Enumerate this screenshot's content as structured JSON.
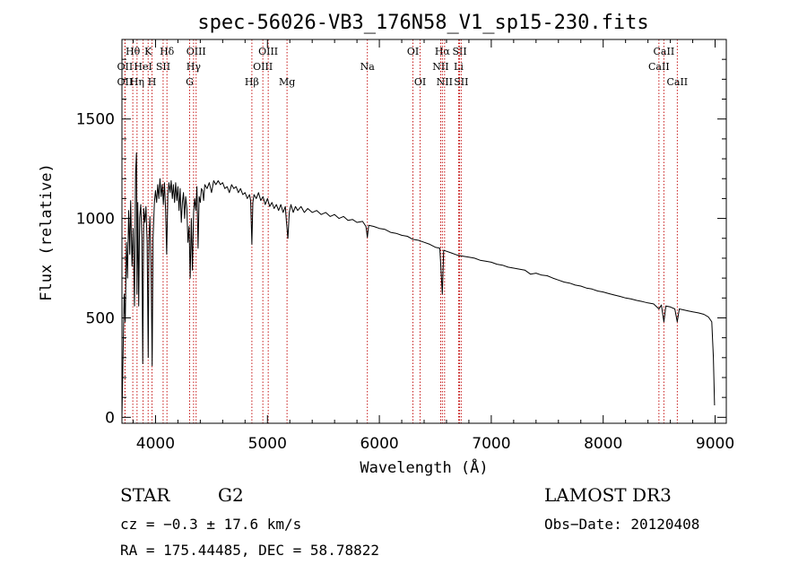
{
  "chart_data": {
    "type": "line",
    "title": "spec-56026-VB3_176N58_V1_sp15-230.fits",
    "xlabel": "Wavelength (Å)",
    "ylabel": "Flux (relative)",
    "xlim": [
      3700,
      9100
    ],
    "ylim": [
      -30,
      1900
    ],
    "xticks": [
      4000,
      5000,
      6000,
      7000,
      8000,
      9000
    ],
    "yticks": [
      0,
      500,
      1000,
      1500
    ],
    "series": [
      {
        "name": "spectrum",
        "points": [
          [
            3700,
            0
          ],
          [
            3705,
            150
          ],
          [
            3712,
            380
          ],
          [
            3720,
            620
          ],
          [
            3730,
            480
          ],
          [
            3740,
            880
          ],
          [
            3750,
            700
          ],
          [
            3760,
            1040
          ],
          [
            3770,
            820
          ],
          [
            3778,
            1090
          ],
          [
            3790,
            760
          ],
          [
            3800,
            950
          ],
          [
            3812,
            560
          ],
          [
            3822,
            1230
          ],
          [
            3830,
            1330
          ],
          [
            3835,
            620
          ],
          [
            3842,
            1080
          ],
          [
            3850,
            560
          ],
          [
            3858,
            1000
          ],
          [
            3868,
            1070
          ],
          [
            3878,
            900
          ],
          [
            3886,
            270
          ],
          [
            3895,
            1050
          ],
          [
            3905,
            980
          ],
          [
            3915,
            1060
          ],
          [
            3925,
            880
          ],
          [
            3935,
            300
          ],
          [
            3942,
            900
          ],
          [
            3950,
            1010
          ],
          [
            3960,
            760
          ],
          [
            3970,
            260
          ],
          [
            3978,
            900
          ],
          [
            3990,
            1080
          ],
          [
            4000,
            1140
          ],
          [
            4010,
            1080
          ],
          [
            4020,
            1170
          ],
          [
            4030,
            1100
          ],
          [
            4040,
            1200
          ],
          [
            4050,
            1110
          ],
          [
            4060,
            1170
          ],
          [
            4070,
            1070
          ],
          [
            4080,
            1180
          ],
          [
            4090,
            1040
          ],
          [
            4100,
            820
          ],
          [
            4110,
            1120
          ],
          [
            4120,
            1180
          ],
          [
            4130,
            1130
          ],
          [
            4140,
            1190
          ],
          [
            4150,
            1100
          ],
          [
            4160,
            1170
          ],
          [
            4170,
            1080
          ],
          [
            4180,
            1180
          ],
          [
            4190,
            1090
          ],
          [
            4200,
            1160
          ],
          [
            4210,
            1040
          ],
          [
            4220,
            1150
          ],
          [
            4230,
            980
          ],
          [
            4240,
            1080
          ],
          [
            4250,
            1130
          ],
          [
            4260,
            1000
          ],
          [
            4270,
            1110
          ],
          [
            4280,
            1050
          ],
          [
            4290,
            880
          ],
          [
            4300,
            960
          ],
          [
            4310,
            700
          ],
          [
            4320,
            1000
          ],
          [
            4330,
            740
          ],
          [
            4340,
            1030
          ],
          [
            4350,
            1100
          ],
          [
            4360,
            1040
          ],
          [
            4370,
            1160
          ],
          [
            4380,
            850
          ],
          [
            4390,
            1110
          ],
          [
            4400,
            1080
          ],
          [
            4410,
            1150
          ],
          [
            4420,
            1140
          ],
          [
            4430,
            1090
          ],
          [
            4440,
            1170
          ],
          [
            4460,
            1150
          ],
          [
            4480,
            1180
          ],
          [
            4500,
            1130
          ],
          [
            4520,
            1190
          ],
          [
            4540,
            1170
          ],
          [
            4560,
            1190
          ],
          [
            4580,
            1170
          ],
          [
            4600,
            1180
          ],
          [
            4620,
            1150
          ],
          [
            4640,
            1160
          ],
          [
            4660,
            1130
          ],
          [
            4680,
            1170
          ],
          [
            4700,
            1150
          ],
          [
            4720,
            1160
          ],
          [
            4740,
            1130
          ],
          [
            4760,
            1150
          ],
          [
            4780,
            1120
          ],
          [
            4800,
            1130
          ],
          [
            4820,
            1100
          ],
          [
            4840,
            1120
          ],
          [
            4850,
            1090
          ],
          [
            4861,
            870
          ],
          [
            4870,
            1080
          ],
          [
            4880,
            1120
          ],
          [
            4900,
            1100
          ],
          [
            4920,
            1130
          ],
          [
            4940,
            1090
          ],
          [
            4960,
            1110
          ],
          [
            4980,
            1070
          ],
          [
            5000,
            1100
          ],
          [
            5020,
            1060
          ],
          [
            5040,
            1080
          ],
          [
            5060,
            1050
          ],
          [
            5080,
            1070
          ],
          [
            5100,
            1040
          ],
          [
            5120,
            1070
          ],
          [
            5140,
            1030
          ],
          [
            5160,
            1060
          ],
          [
            5170,
            980
          ],
          [
            5183,
            900
          ],
          [
            5195,
            1030
          ],
          [
            5210,
            1070
          ],
          [
            5230,
            1030
          ],
          [
            5250,
            1060
          ],
          [
            5270,
            1040
          ],
          [
            5300,
            1060
          ],
          [
            5330,
            1030
          ],
          [
            5360,
            1050
          ],
          [
            5400,
            1030
          ],
          [
            5440,
            1040
          ],
          [
            5480,
            1020
          ],
          [
            5520,
            1030
          ],
          [
            5560,
            1010
          ],
          [
            5600,
            1020
          ],
          [
            5640,
            1000
          ],
          [
            5680,
            1010
          ],
          [
            5720,
            990
          ],
          [
            5760,
            995
          ],
          [
            5800,
            980
          ],
          [
            5850,
            985
          ],
          [
            5880,
            960
          ],
          [
            5893,
            905
          ],
          [
            5905,
            965
          ],
          [
            5950,
            960
          ],
          [
            6000,
            950
          ],
          [
            6050,
            945
          ],
          [
            6100,
            930
          ],
          [
            6150,
            925
          ],
          [
            6200,
            915
          ],
          [
            6250,
            910
          ],
          [
            6300,
            895
          ],
          [
            6350,
            890
          ],
          [
            6400,
            880
          ],
          [
            6450,
            870
          ],
          [
            6500,
            855
          ],
          [
            6540,
            850
          ],
          [
            6563,
            620
          ],
          [
            6575,
            840
          ],
          [
            6600,
            835
          ],
          [
            6650,
            825
          ],
          [
            6700,
            815
          ],
          [
            6750,
            810
          ],
          [
            6800,
            805
          ],
          [
            6850,
            800
          ],
          [
            6900,
            790
          ],
          [
            6950,
            785
          ],
          [
            7000,
            780
          ],
          [
            7050,
            770
          ],
          [
            7100,
            765
          ],
          [
            7150,
            755
          ],
          [
            7200,
            750
          ],
          [
            7250,
            745
          ],
          [
            7300,
            740
          ],
          [
            7350,
            720
          ],
          [
            7400,
            725
          ],
          [
            7450,
            715
          ],
          [
            7500,
            712
          ],
          [
            7550,
            700
          ],
          [
            7600,
            690
          ],
          [
            7650,
            680
          ],
          [
            7700,
            675
          ],
          [
            7750,
            665
          ],
          [
            7800,
            660
          ],
          [
            7850,
            650
          ],
          [
            7900,
            645
          ],
          [
            7950,
            635
          ],
          [
            8000,
            630
          ],
          [
            8050,
            622
          ],
          [
            8100,
            615
          ],
          [
            8150,
            608
          ],
          [
            8200,
            600
          ],
          [
            8250,
            595
          ],
          [
            8300,
            588
          ],
          [
            8350,
            582
          ],
          [
            8400,
            575
          ],
          [
            8450,
            570
          ],
          [
            8498,
            545
          ],
          [
            8520,
            565
          ],
          [
            8542,
            480
          ],
          [
            8560,
            560
          ],
          [
            8600,
            555
          ],
          [
            8640,
            545
          ],
          [
            8662,
            480
          ],
          [
            8680,
            545
          ],
          [
            8720,
            540
          ],
          [
            8760,
            535
          ],
          [
            8800,
            530
          ],
          [
            8850,
            525
          ],
          [
            8900,
            518
          ],
          [
            8940,
            505
          ],
          [
            8970,
            480
          ],
          [
            8985,
            300
          ],
          [
            8995,
            60
          ]
        ]
      }
    ],
    "lines": [
      {
        "label": "Hθ",
        "x": 3797,
        "row": 0
      },
      {
        "label": "OII",
        "x": 3727,
        "row": 1
      },
      {
        "label": "OII",
        "x": 3727,
        "row": 2
      },
      {
        "label": "K",
        "x": 3934,
        "row": 0
      },
      {
        "label": "HeI",
        "x": 3889,
        "row": 1
      },
      {
        "label": "Hη",
        "x": 3835,
        "row": 2
      },
      {
        "label": "SII",
        "x": 4068,
        "row": 1
      },
      {
        "label": "H",
        "x": 3969,
        "row": 2
      },
      {
        "label": "Hδ",
        "x": 4102,
        "row": 0
      },
      {
        "label": "OIII",
        "x": 4363,
        "row": 0
      },
      {
        "label": "Hγ",
        "x": 4340,
        "row": 1
      },
      {
        "label": "G",
        "x": 4305,
        "row": 2
      },
      {
        "label": "Hβ",
        "x": 4861,
        "row": 2
      },
      {
        "label": "OIII",
        "x": 5007,
        "row": 0
      },
      {
        "label": "OIII",
        "x": 4959,
        "row": 1
      },
      {
        "label": "Mg",
        "x": 5175,
        "row": 2
      },
      {
        "label": "Na",
        "x": 5893,
        "row": 1
      },
      {
        "label": "OI",
        "x": 6300,
        "row": 0
      },
      {
        "label": "OI",
        "x": 6364,
        "row": 2
      },
      {
        "label": "Hα",
        "x": 6563,
        "row": 0
      },
      {
        "label": "SII",
        "x": 6717,
        "row": 0
      },
      {
        "label": "NII",
        "x": 6548,
        "row": 1
      },
      {
        "label": "Li",
        "x": 6708,
        "row": 1
      },
      {
        "label": "NII",
        "x": 6583,
        "row": 2
      },
      {
        "label": "SII",
        "x": 6731,
        "row": 2
      },
      {
        "label": "CaII",
        "x": 8542,
        "row": 0
      },
      {
        "label": "CaII",
        "x": 8498,
        "row": 1
      },
      {
        "label": "CaII",
        "x": 8662,
        "row": 2
      }
    ]
  },
  "info": {
    "class": "STAR",
    "subclass": "G2",
    "survey": "LAMOST DR3",
    "cz": "cz = −0.3 ± 17.6 km/s",
    "obs_date": "Obs−Date: 20120408",
    "coords": "RA = 175.44485, DEC =  58.78822"
  },
  "colors": {
    "line_marker": "#c00000",
    "spectrum": "#000000"
  }
}
